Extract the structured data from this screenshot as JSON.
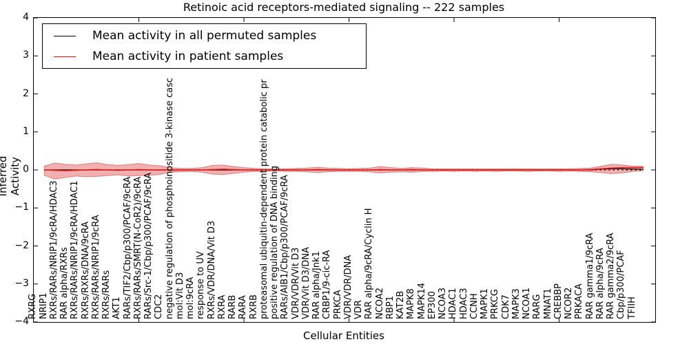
{
  "title": "Retinoic acid receptors-mediated signaling -- 222 samples",
  "legend": {
    "items": [
      {
        "label": "Mean activity in all permuted samples",
        "color": "#000000"
      },
      {
        "label": "Mean activity in patient samples",
        "color": "#ff0000"
      }
    ],
    "position": "upper left"
  },
  "colors": {
    "permuted_line": "#000000",
    "patient_line": "#e81c1c",
    "band_fill": "#e04545",
    "band_edge": "#cc3333",
    "zero_line": "#000000",
    "axis": "#000000"
  },
  "chart_data": {
    "type": "line",
    "title": "Retinoic acid receptors-mediated signaling -- 222 samples",
    "xlabel": "Cellular Entities",
    "ylabel": "Inferred Activity",
    "ylim": [
      -4,
      4
    ],
    "yticks": [
      4,
      3,
      2,
      1,
      0,
      -1,
      -2,
      -3,
      -4
    ],
    "yticklabels": [
      "4",
      "3",
      "2",
      "1",
      "0",
      "−1",
      "−2",
      "−3",
      "−4"
    ],
    "xticks_index_units": [
      10,
      20,
      30,
      40,
      50
    ],
    "grid": false,
    "legend_position": "upper left",
    "categories": [
      "RXRG",
      "NRIP1",
      "RXRs/RARs/NRIP1/9cRA/HDAC3",
      "RAR alpha/RXRs",
      "RXRs/RARs/NRIP1/9cRA/HDAC1",
      "RXRs/RXRs/DNA/9cRA",
      "RXRs/RARs/NRIP1/9cRA",
      "RXRs/RARs",
      "AKT1",
      "RARs/TIF2/Cbp/p300/PCAF/9cRA",
      "RXRs/RARs/SMRT(N-CoR2)/9cRA",
      "RARs/Src-1/Cbp/p300/PCAF/9cRA",
      "CDC2",
      "negative regulation of phosphoinositide 3-kinase casc",
      "mol:Vit D3",
      "mol:9cRA",
      "response to UV",
      "RXRs/VDR/DNA/Vit D3",
      "RXRA",
      "RARB",
      "RARA",
      "RXRB",
      "proteasomal ubiquitin-dependent protein catabolic pr",
      "positive regulation of DNA binding",
      "RARs/AIB1/Cbp/p300/PCAF/9cRA",
      "VDR/VDR/Vit D3",
      "VDR/Vit D3/DNA",
      "RAR alpha/Jnk1",
      "CRBP1/9-cic-RA",
      "PRKCA",
      "VDR/VDR/DNA",
      "VDR",
      "RAR alpha/9cRA/Cyclin H",
      "NCOA2",
      "RBP1",
      "KAT2B",
      "MAPK8",
      "MAPK14",
      "EP300",
      "NCOA3",
      "HDAC1",
      "HDAC3",
      "CCNH",
      "MAPK1",
      "PRKCG",
      "CDK7",
      "MAPK3",
      "NCOA1",
      "RARG",
      "MNAT1",
      "CREBBP",
      "NCOR2",
      "PRKACA",
      "RAR gamma1/9cRA",
      "RAR alpha/9cRA",
      "RAR gamma2/9cRA",
      "Cbp/p300/PCAF",
      "TFIIH"
    ],
    "series": [
      {
        "name": "Mean activity in all permuted samples",
        "color": "#000000",
        "values": [
          0,
          0,
          0,
          0,
          0,
          0,
          0,
          0,
          0,
          0,
          0,
          0,
          0,
          0,
          0,
          0,
          0,
          0,
          0,
          0,
          0,
          0,
          0,
          0,
          0,
          0,
          0,
          0,
          0,
          0,
          0,
          0,
          0,
          0,
          0,
          0,
          0,
          0,
          0,
          0,
          0,
          0,
          0,
          0,
          0,
          0,
          0,
          0,
          0,
          0,
          0,
          0,
          0,
          0.02,
          0.03,
          0.03,
          0.02,
          0.02
        ]
      },
      {
        "name": "Mean activity in patient samples",
        "color": "#e81c1c",
        "values": [
          0,
          -0.01,
          -0.02,
          -0.01,
          0,
          0.01,
          0,
          -0.01,
          0,
          0.01,
          0,
          0,
          -0.01,
          0,
          0,
          0,
          0.01,
          0.02,
          0.01,
          0,
          0,
          0,
          0,
          0,
          0,
          0,
          0.01,
          0,
          0,
          0,
          0,
          0,
          0.01,
          0,
          0,
          0.01,
          0,
          0,
          0,
          0,
          0,
          0,
          0,
          0,
          0,
          0,
          0,
          0,
          0,
          0,
          0,
          0,
          0.01,
          0.03,
          0.05,
          0.06,
          0.06,
          0.07
        ]
      }
    ],
    "band": {
      "name": "patient samples std band",
      "upper": [
        0.1,
        0.18,
        0.15,
        0.13,
        0.16,
        0.19,
        0.14,
        0.12,
        0.14,
        0.17,
        0.13,
        0.11,
        0.06,
        0.04,
        0.04,
        0.06,
        0.12,
        0.13,
        0.09,
        0.06,
        0.04,
        0.03,
        0.03,
        0.03,
        0.04,
        0.05,
        0.07,
        0.05,
        0.04,
        0.03,
        0.04,
        0.05,
        0.09,
        0.06,
        0.04,
        0.06,
        0.05,
        0.03,
        0.03,
        0.03,
        0.03,
        0.03,
        0.03,
        0.03,
        0.03,
        0.03,
        0.03,
        0.03,
        0.03,
        0.03,
        0.03,
        0.04,
        0.05,
        0.1,
        0.15,
        0.13,
        0.1,
        0.09
      ],
      "lower": [
        -0.14,
        -0.24,
        -0.2,
        -0.16,
        -0.18,
        -0.17,
        -0.15,
        -0.13,
        -0.16,
        -0.15,
        -0.14,
        -0.12,
        -0.06,
        -0.05,
        -0.04,
        -0.06,
        -0.11,
        -0.12,
        -0.09,
        -0.06,
        -0.04,
        -0.04,
        -0.03,
        -0.04,
        -0.04,
        -0.05,
        -0.07,
        -0.05,
        -0.04,
        -0.04,
        -0.04,
        -0.05,
        -0.08,
        -0.06,
        -0.05,
        -0.06,
        -0.04,
        -0.04,
        -0.03,
        -0.04,
        -0.03,
        -0.04,
        -0.03,
        -0.04,
        -0.03,
        -0.03,
        -0.04,
        -0.03,
        -0.03,
        -0.04,
        -0.03,
        -0.04,
        -0.05,
        -0.07,
        -0.1,
        -0.08,
        -0.04,
        -0.02
      ]
    },
    "zero_line": {
      "style": "dotted",
      "value": 0
    }
  }
}
